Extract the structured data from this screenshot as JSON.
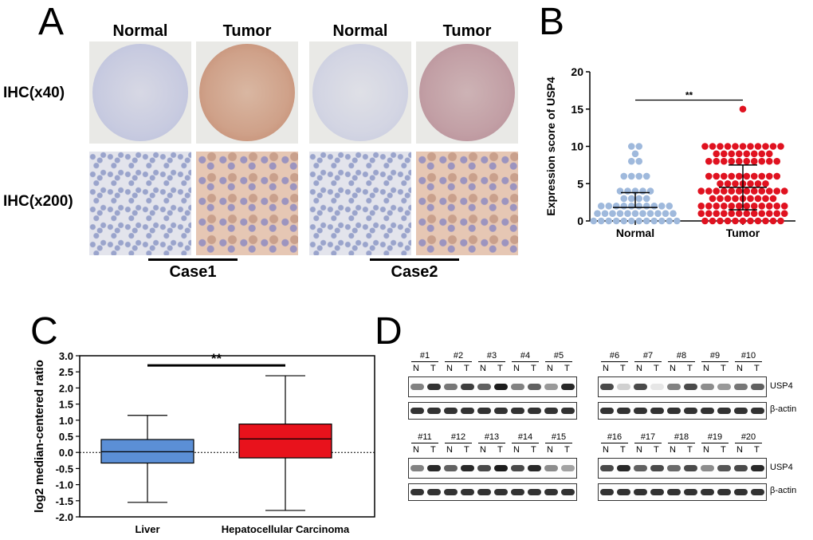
{
  "panelA": {
    "letter": "A",
    "col_headers": [
      "Normal",
      "Tumor",
      "Normal",
      "Tumor"
    ],
    "row_labels": [
      "IHC(x40)",
      "IHC(x200)"
    ],
    "cases": [
      "Case1",
      "Case2"
    ]
  },
  "panelB": {
    "letter": "B",
    "significance": "**",
    "chart_data": {
      "type": "scatter",
      "categories": [
        "Normal",
        "Tumor"
      ],
      "ylabel": "Expression score of USP4",
      "ylim": [
        0,
        20
      ],
      "yticks": [
        "0",
        "5",
        "10",
        "15",
        "20"
      ],
      "series": [
        {
          "values": [
            0,
            0,
            0,
            0,
            0,
            0,
            0,
            0,
            0,
            0,
            0,
            0,
            1,
            1,
            1,
            1,
            1,
            1,
            1,
            1,
            1,
            1,
            1,
            2,
            2,
            2,
            2,
            2,
            2,
            2,
            2,
            2,
            2,
            3,
            3,
            3,
            3,
            4,
            4,
            4,
            4,
            4,
            6,
            6,
            6,
            6,
            8,
            8,
            9,
            10,
            10
          ],
          "mean": 1.8,
          "sd_upper": 3.8,
          "color": "#9fb9dc"
        },
        {
          "values": [
            0,
            0,
            0,
            0,
            0,
            0,
            0,
            0,
            0,
            0,
            0,
            1,
            1,
            1,
            1,
            1,
            1,
            1,
            1,
            1,
            1,
            1,
            1,
            2,
            2,
            2,
            2,
            2,
            2,
            2,
            2,
            2,
            2,
            2,
            2,
            3,
            3,
            3,
            3,
            3,
            3,
            3,
            3,
            3,
            4,
            4,
            4,
            4,
            4,
            4,
            4,
            4,
            4,
            4,
            4,
            4,
            5,
            5,
            5,
            5,
            5,
            5,
            5,
            6,
            6,
            6,
            6,
            6,
            6,
            6,
            6,
            6,
            6,
            8,
            8,
            8,
            8,
            8,
            8,
            8,
            8,
            8,
            8,
            9,
            9,
            9,
            9,
            9,
            9,
            9,
            9,
            10,
            10,
            10,
            10,
            10,
            10,
            10,
            10,
            10,
            10,
            10,
            15
          ],
          "mean": 4.5,
          "sd_upper": 7.5,
          "sd_lower": 1.5,
          "color": "#e01220"
        }
      ]
    }
  },
  "panelC": {
    "letter": "C",
    "significance": "**",
    "chart_data": {
      "type": "box",
      "categories": [
        "Liver",
        "Hepatocellular Carcinoma"
      ],
      "ylabel": "log2 median-centered ratio",
      "ylim": [
        -2.0,
        3.0
      ],
      "yticks": [
        "-2.0",
        "-1.5",
        "-1.0",
        "-0.5",
        "0.0",
        "0.5",
        "1.0",
        "1.5",
        "2.0",
        "2.5",
        "3.0"
      ],
      "boxes": [
        {
          "min": -1.55,
          "q1": -0.33,
          "median": 0.02,
          "q3": 0.4,
          "max": 1.15,
          "color": "#5b8fd6"
        },
        {
          "min": -1.8,
          "q1": -0.17,
          "median": 0.42,
          "q3": 0.88,
          "max": 2.38,
          "color": "#e8121c"
        }
      ]
    }
  },
  "panelD": {
    "letter": "D",
    "groups": [
      {
        "samples": [
          "#1",
          "#2",
          "#3",
          "#4",
          "#5"
        ]
      },
      {
        "samples": [
          "#6",
          "#7",
          "#8",
          "#9",
          "#10"
        ]
      },
      {
        "samples": [
          "#11",
          "#12",
          "#13",
          "#14",
          "#15"
        ]
      },
      {
        "samples": [
          "#16",
          "#17",
          "#18",
          "#19",
          "#20"
        ]
      }
    ],
    "lane_labels": [
      "N",
      "T"
    ],
    "protein_labels": [
      "USP4",
      "β-actin"
    ]
  }
}
